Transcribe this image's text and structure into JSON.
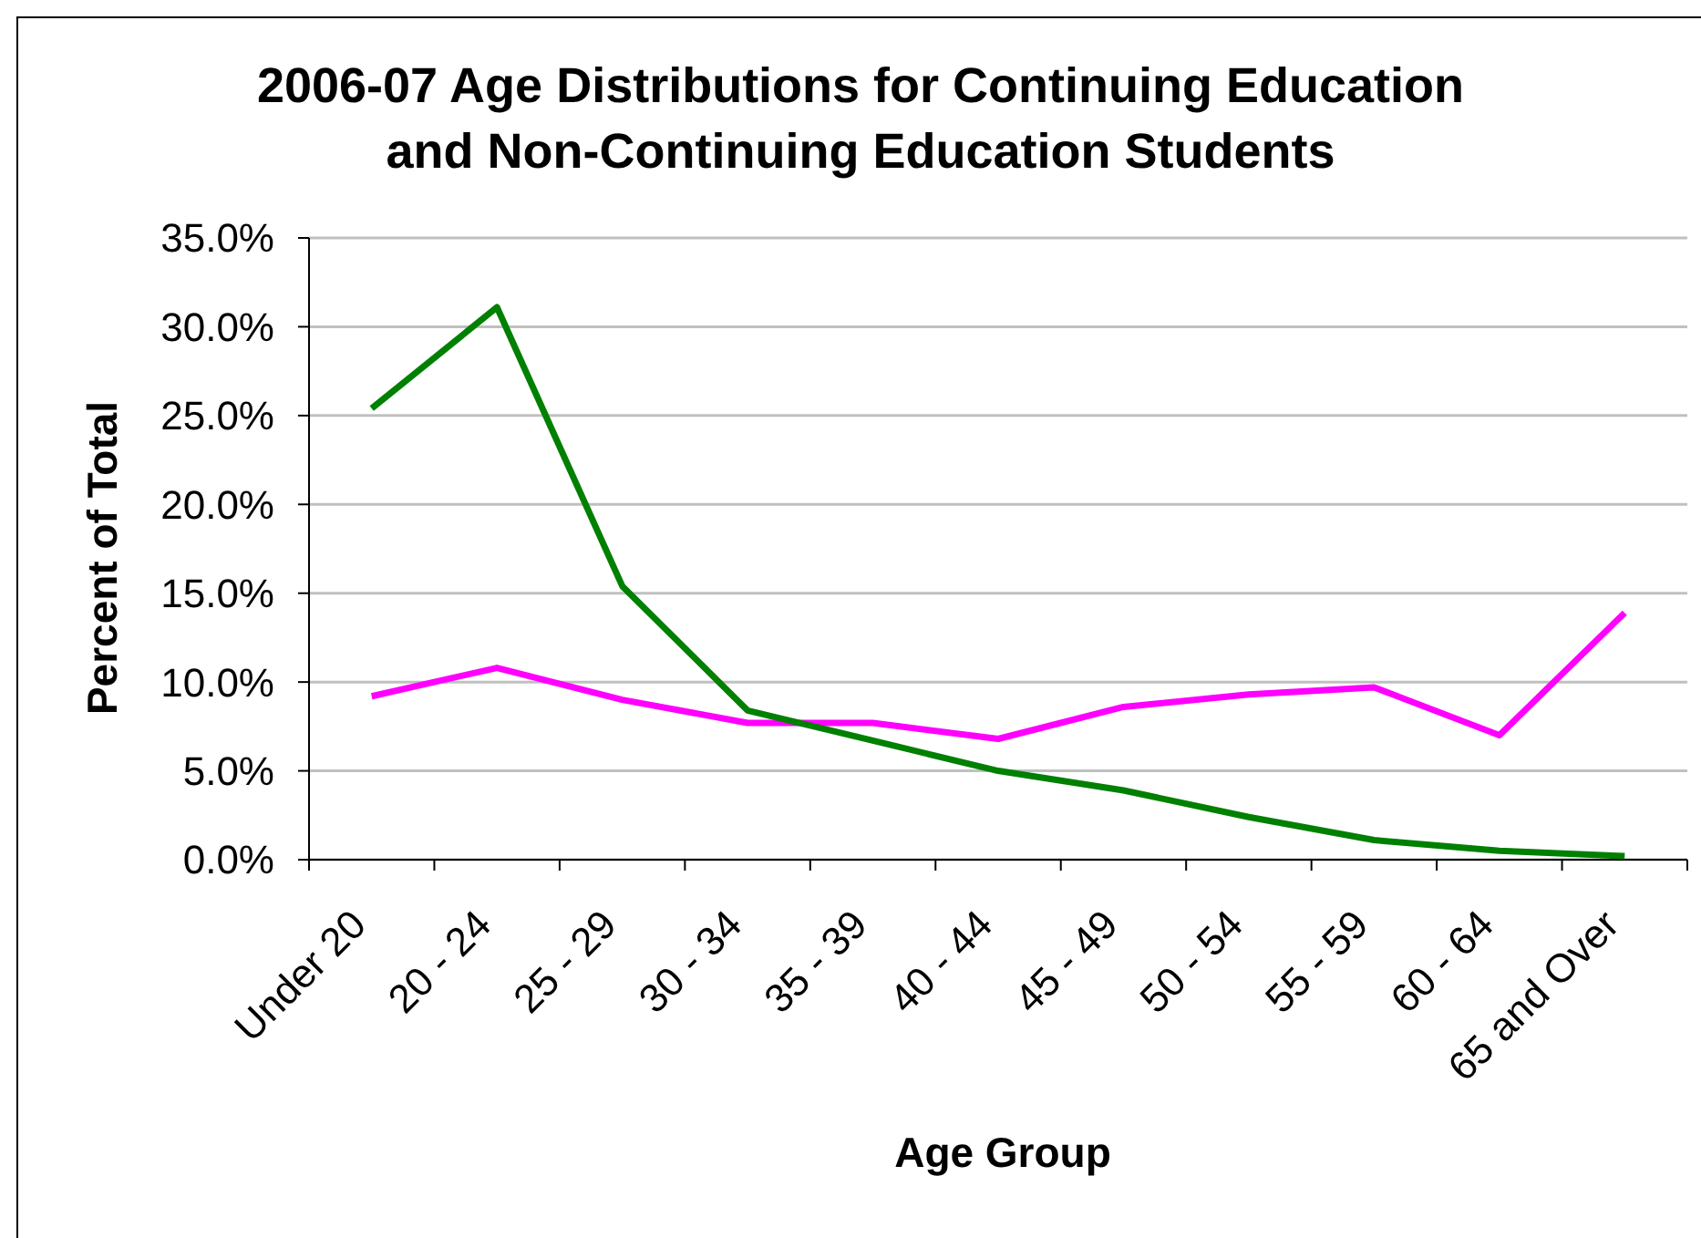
{
  "chart_data": {
    "type": "line",
    "title": "2006-07 Age Distributions for Continuing Education and Non-Continuing Education Students",
    "xlabel": "Age Group",
    "ylabel": "Percent of Total",
    "categories": [
      "Under 20",
      "20 - 24",
      "25 - 29",
      "30 - 34",
      "35 - 39",
      "40 - 44",
      "45 - 49",
      "50 - 54",
      "55 - 59",
      "60 - 64",
      "65 and Over"
    ],
    "series": [
      {
        "color": "#ff00ff",
        "values": [
          9.2,
          10.8,
          9.0,
          7.7,
          7.7,
          6.8,
          8.6,
          9.3,
          9.7,
          7.0,
          13.9
        ]
      },
      {
        "color": "#008000",
        "values": [
          25.4,
          31.1,
          15.4,
          8.4,
          6.7,
          5.0,
          3.9,
          2.4,
          1.1,
          0.5,
          0.2
        ]
      }
    ],
    "ylim": [
      0,
      35
    ],
    "yticks": [
      {
        "value": 0,
        "label": "0.0%"
      },
      {
        "value": 5,
        "label": "5.0%"
      },
      {
        "value": 10,
        "label": "10.0%"
      },
      {
        "value": 15,
        "label": "15.0%"
      },
      {
        "value": 20,
        "label": "20.0%"
      },
      {
        "value": 25,
        "label": "25.0%"
      },
      {
        "value": 30,
        "label": "30.0%"
      },
      {
        "value": 35,
        "label": "35.0%"
      }
    ],
    "grid": "y"
  }
}
